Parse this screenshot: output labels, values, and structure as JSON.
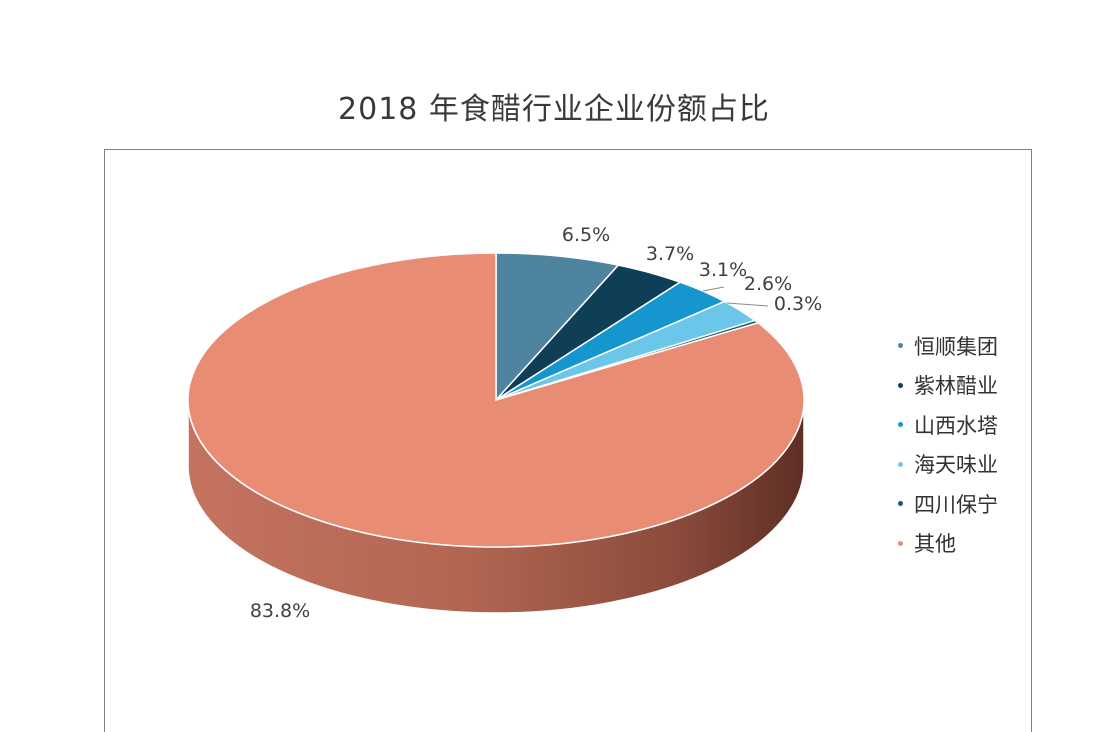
{
  "chart_data": {
    "type": "pie",
    "title": "2018 年食醋行业企业份额占比",
    "unit": "%",
    "categories": [
      "恒顺集团",
      "紫林醋业",
      "山西水塔",
      "海天味业",
      "四川保宁",
      "其他"
    ],
    "values": [
      6.5,
      3.7,
      3.1,
      2.6,
      0.3,
      83.8
    ],
    "labels": [
      "6.5%",
      "3.7%",
      "3.1%",
      "2.6%",
      "0.3%",
      "83.8%"
    ],
    "colors": [
      "#4f84a0",
      "#0f3f57",
      "#1596cf",
      "#6cc6ea",
      "#1b5a6d",
      "#e98c74"
    ],
    "legend_position": "right",
    "style": "3d-pie"
  }
}
